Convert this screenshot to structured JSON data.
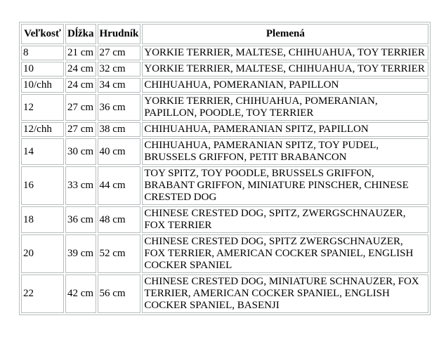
{
  "page": {
    "background_color": "#ffffff",
    "text_color": "#000000",
    "table_border_color": "#b7bcbc"
  },
  "table": {
    "headers": {
      "size": "Veľkosť",
      "length": "Dĺžka",
      "chest": "Hrudník",
      "breeds": "Plemená"
    },
    "rows": [
      {
        "size": "8",
        "length": "21 cm",
        "chest": "27 cm",
        "breeds": "YORKIE TERRIER, MALTESE, CHIHUAHUA, TOY TERRIER"
      },
      {
        "size": "10",
        "length": "24 cm",
        "chest": "32 cm",
        "breeds": "YORKIE TERRIER, MALTESE, CHIHUAHUA, TOY TERRIER"
      },
      {
        "size": "10/chh",
        "length": "24 cm",
        "chest": "34 cm",
        "breeds": "CHIHUAHUA, POMERANIAN, PAPILLON"
      },
      {
        "size": "12",
        "length": "27 cm",
        "chest": "36 cm",
        "breeds": "YORKIE TERRIER, CHIHUAHUA, POMERANIAN, PAPILLON, POODLE, TOY TERRIER"
      },
      {
        "size": "12/chh",
        "length": "27 cm",
        "chest": "38 cm",
        "breeds": "CHIHUAHUA, PAMERANIAN SPITZ, PAPILLON"
      },
      {
        "size": "14",
        "length": "30 cm",
        "chest": "40 cm",
        "breeds": "CHIHUAHUA, PAMERANIAN SPITZ, TOY PUDEL, BRUSSELS GRIFFON, PETIT BRABANCON"
      },
      {
        "size": "16",
        "length": "33 cm",
        "chest": "44 cm",
        "breeds": "TOY SPITZ, TOY POODLE, BRUSSELS GRIFFON, BRABANT GRIFFON, MINIATURE PINSCHER, CHINESE CRESTED DOG"
      },
      {
        "size": "18",
        "length": "36 cm",
        "chest": "48 cm",
        "breeds": "CHINESE CRESTED DOG, SPITZ, ZWERGSCHNAUZER, FOX TERRIER"
      },
      {
        "size": "20",
        "length": "39 cm",
        "chest": "52 cm",
        "breeds": "CHINESE CRESTED DOG, SPITZ ZWERGSCHNAUZER, FOX TERRIER, AMERICAN COCKER SPANIEL, ENGLISH COCKER SPANIEL"
      },
      {
        "size": "22",
        "length": "42 cm",
        "chest": "56 cm",
        "breeds": "CHINESE CRESTED DOG, MINIATURE SCHNAUZER, FOX TERRIER, AMERICAN COCKER SPANIEL, ENGLISH COCKER SPANIEL, BASENJI"
      }
    ]
  }
}
